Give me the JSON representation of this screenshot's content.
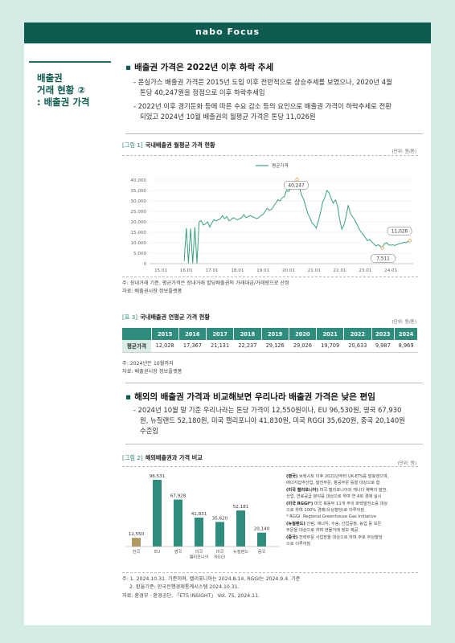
{
  "header": {
    "brand": "nabo Focus"
  },
  "side_title": {
    "line1": "배출권",
    "line2": "거래 현황 ②",
    "line3": ": 배출권 가격"
  },
  "section1": {
    "heading": "배출권 가격은 2022년 이후 하락 추세",
    "para1_line1": "- 온실가스 배출권 가격은 2015년 도입 이후 전반적으로 상승추세를 보였으나, 2020년 4월",
    "para1_line2": "톤당 40,247원을 정점으로 이후 하락추세임",
    "para2_line1": "- 2022년 이후 경기둔화 등에 따른 수요 감소 등의 요인으로 배출권 가격이 하락추세로 전환",
    "para2_line2": "되었고 2024년 10월 배출권의 월평균 가격은 톤당 11,026원"
  },
  "figure1": {
    "tag": "[그림 1]",
    "title": "국내배출권 월평균 가격 현황",
    "unit": "(단위: 원/톤)",
    "note1": "주: 장내거래 기준, 평균가격은 장내거래 할당배출권의 거래대금/거래량으로 산정",
    "note2": "자료: 배출권시장 정보플랫폼"
  },
  "chart_data": [
    {
      "type": "line",
      "title": "국내배출권 월평균 가격 현황",
      "legend": "평균가격",
      "legend_position": "top",
      "ylim": [
        0,
        40000
      ],
      "yticks": [
        "40,000",
        "35,000",
        "30,000",
        "25,000",
        "20,000",
        "15,000",
        "10,000",
        "5,000",
        "0"
      ],
      "xticks": [
        "15.01",
        "16.01",
        "17.01",
        "18.01",
        "19.01",
        "20.01",
        "21.01",
        "22.01",
        "23.01",
        "24.01"
      ],
      "annotations": [
        {
          "label": "40,247",
          "month_index": 64,
          "value": 40247
        },
        {
          "label": "7,511",
          "month_index": 104,
          "value": 7511
        },
        {
          "label": "11,026",
          "month_index": 117,
          "value": 11026
        }
      ],
      "series": [
        {
          "name": "평균가격",
          "values": [
            8500,
            null,
            null,
            null,
            null,
            null,
            null,
            null,
            null,
            null,
            null,
            1200,
            17000,
            200,
            16800,
            200,
            17500,
            200,
            20000,
            20500,
            18500,
            19000,
            20000,
            17500,
            19500,
            21000,
            20500,
            21000,
            21500,
            23000,
            21500,
            22500,
            20500,
            21000,
            22000,
            21500,
            21000,
            21500,
            22000,
            23500,
            22000,
            22500,
            23000,
            22500,
            22000,
            21500,
            22000,
            23000,
            23500,
            25000,
            26500,
            25500,
            26000,
            27500,
            29000,
            30500,
            30000,
            31500,
            32000,
            35000,
            34500,
            36000,
            38000,
            39000,
            40247,
            37000,
            33000,
            31000,
            27500,
            24000,
            22000,
            19500,
            18500,
            17000,
            20500,
            24500,
            29500,
            31500,
            35000,
            34000,
            31000,
            29000,
            30500,
            27500,
            21000,
            16500,
            18500,
            22500,
            28000,
            24000,
            22500,
            21000,
            19000,
            17000,
            15000,
            14000,
            12500,
            11000,
            11500,
            10500,
            9500,
            8500,
            9000,
            8500,
            7511,
            9500,
            10000,
            9000,
            8800,
            9000,
            8700,
            9200,
            9500,
            9800,
            10200,
            10000,
            10500,
            11026
          ]
        }
      ]
    },
    {
      "type": "bar",
      "title": "해외배출권과 가격 비교",
      "categories": [
        "한국",
        "EU",
        "영국",
        "미국 캘리포니아",
        "미국 RGGI",
        "뉴질랜드",
        "중국"
      ],
      "values": [
        12550,
        96531,
        67928,
        41831,
        35620,
        52181,
        20140
      ],
      "value_labels": [
        "12,550",
        "96,531",
        "67,928",
        "41,831",
        "35,620",
        "52,181",
        "20,140"
      ],
      "colors": {
        "korea": "#b19a5f",
        "others": "#2e8d7d"
      }
    }
  ],
  "table3": {
    "tag": "[표 3]",
    "title": "국내배출권 연평균 가격 현황",
    "unit": "(단위: 원/톤)",
    "years": [
      "2015",
      "2016",
      "2017",
      "2018",
      "2019",
      "2020",
      "2021",
      "2022",
      "2023",
      "2024"
    ],
    "row_label": "평균가격",
    "values": [
      "12,028",
      "17,367",
      "21,131",
      "22,237",
      "29,126",
      "29,026",
      "19,709",
      "20,633",
      "9,987",
      "8,969"
    ],
    "note1": "주: 2024년은 10월까지",
    "note2": "자료: 배출권시장 정보플랫폼"
  },
  "section2": {
    "heading": "해외의 배출권 가격과 비교해보면 우리나라 배출권 가격은 낮은 편임",
    "para_line1": "- 2024년 10월 말 기준 우리나라는 톤당 가격이 12,550원이나, EU 96,530원, 영국 67,930",
    "para_line2": "원, 뉴질랜드 52,180원, 미국 캘리포니아 41,830원, 미국 RGGI 35,620원, 중국 20,140원",
    "para_line3": "수준임"
  },
  "figure2": {
    "tag": "[그림 2]",
    "title": "해외배출권과 가격 비교",
    "unit": "(단위: 원)",
    "legend_lines": [
      "(영국) 브렉시트 이후 2021년부터 UK-ETS를 발효했으며,",
      "에너지집약산업, 발전부문, 항공부문 등을 대상으로 함",
      "(미국 캘리포니아) 미국 캘리포니아와 캐나다 퀘벡의 발전,",
      "산업, 연료공급 분야를 대상으로 하며 연 4회 경매 실시",
      "(미국 RGGI*) 미국 북동부 11개 주의 화력발전소를 대상",
      "으로 하며 100% 경매(유상할당)로 이루어짐",
      "* RGGI: Regional Greenhouse Gas Initiative",
      "(뉴질랜드) 산림, 에너지, 수송, 산업공정, 농업 등 모든",
      "부문을 대상으로 하며 현물거래 정보 제공",
      "(중국) 전력부문 사업장을 대상으로 하며 주로 무상할당",
      "으로 이루어짐"
    ],
    "note1": "주: 1. 2024.10.31. 기준이며, 캘리포니아는 2024.8.14, RGGI는 2024.9.4. 기준",
    "note2": "2. 환율기준: 한국은행경제통계시스템 2024.10.31.",
    "note3": "자료: 환경부 · 환경공단, 「ETS INSIGHT」 Vol. 75, 2024.11."
  }
}
